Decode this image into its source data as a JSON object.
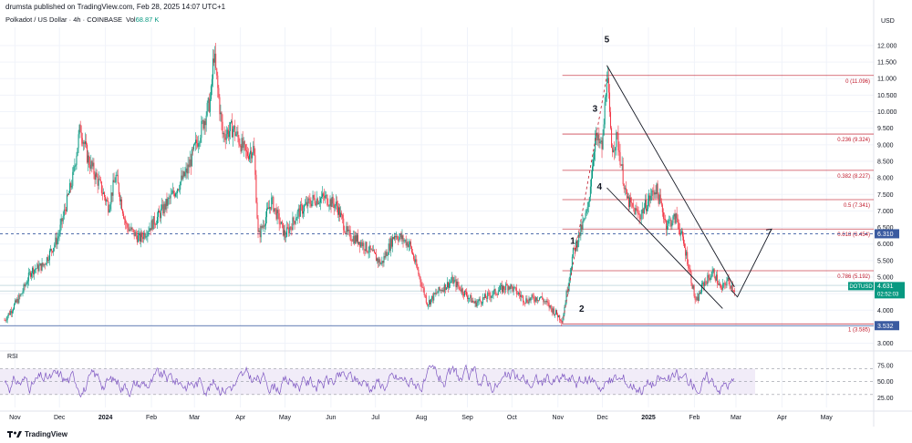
{
  "header": {
    "published": "drumsta published on TradingView.com, Feb 28, 2025 14:07 UTC+1"
  },
  "symbol": {
    "title": "Polkadot / US Dollar · 4h · COINBASE",
    "volume_label": "Vol",
    "volume_value": "68.87 K"
  },
  "footer": {
    "brand": "TradingView",
    "logo": "tradingview-logo-icon"
  },
  "colors": {
    "up": "#089981",
    "down": "#f23645",
    "fib": "#c0182a",
    "rsi": "#7e57c2",
    "rsi_band": "#ede7f6",
    "price_tag": "#089981",
    "level_tag": "#3a5ba0",
    "dashed": "#3a5ba0",
    "grid": "#f0f3fa"
  },
  "chart_data": [
    {
      "type": "candlestick",
      "title": "Polkadot / US Dollar · 4h · COINBASE",
      "currency_label": "USD",
      "y_ticks": [
        "12.000",
        "11.500",
        "11.000",
        "10.500",
        "10.000",
        "9.500",
        "9.000",
        "8.500",
        "8.000",
        "7.500",
        "7.000",
        "6.500",
        "6.000",
        "5.500",
        "5.000",
        "4.500",
        "4.000",
        "3.500",
        "3.000"
      ],
      "ylim": [
        2.85,
        12.55
      ],
      "x_months": [
        "Nov",
        "Dec",
        "2024",
        "Feb",
        "Mar",
        "Apr",
        "May",
        "Jun",
        "Jul",
        "Aug",
        "Sep",
        "Oct",
        "Nov",
        "Dec",
        "2025",
        "Feb",
        "Mar",
        "Apr",
        "May"
      ],
      "price_path": [
        [
          "2023-10-25",
          3.7
        ],
        [
          "2023-11-05",
          4.45
        ],
        [
          "2023-11-12",
          5.2
        ],
        [
          "2023-11-20",
          5.35
        ],
        [
          "2023-11-30",
          6.2
        ],
        [
          "2023-12-10",
          8.0
        ],
        [
          "2023-12-15",
          9.55
        ],
        [
          "2023-12-20",
          8.6
        ],
        [
          "2023-12-28",
          7.8
        ],
        [
          "2024-01-03",
          7.15
        ],
        [
          "2024-01-08",
          8.05
        ],
        [
          "2024-01-15",
          6.55
        ],
        [
          "2024-01-24",
          6.15
        ],
        [
          "2024-02-05",
          6.8
        ],
        [
          "2024-02-14",
          7.4
        ],
        [
          "2024-02-25",
          8.2
        ],
        [
          "2024-03-05",
          9.4
        ],
        [
          "2024-03-12",
          10.4
        ],
        [
          "2024-03-14",
          11.8
        ],
        [
          "2024-03-20",
          9.3
        ],
        [
          "2024-03-27",
          9.5
        ],
        [
          "2024-04-05",
          8.7
        ],
        [
          "2024-04-10",
          8.9
        ],
        [
          "2024-04-13",
          6.2
        ],
        [
          "2024-04-22",
          7.3
        ],
        [
          "2024-05-01",
          6.25
        ],
        [
          "2024-05-10",
          6.95
        ],
        [
          "2024-05-20",
          7.35
        ],
        [
          "2024-05-28",
          7.4
        ],
        [
          "2024-06-05",
          7.15
        ],
        [
          "2024-06-12",
          6.3
        ],
        [
          "2024-06-20",
          6.1
        ],
        [
          "2024-06-28",
          5.75
        ],
        [
          "2024-07-05",
          5.4
        ],
        [
          "2024-07-14",
          6.3
        ],
        [
          "2024-07-24",
          6.0
        ],
        [
          "2024-08-05",
          4.2
        ],
        [
          "2024-08-12",
          4.55
        ],
        [
          "2024-08-22",
          4.9
        ],
        [
          "2024-09-06",
          4.2
        ],
        [
          "2024-09-20",
          4.55
        ],
        [
          "2024-09-29",
          4.75
        ],
        [
          "2024-10-10",
          4.3
        ],
        [
          "2024-10-20",
          4.4
        ],
        [
          "2024-11-04",
          3.7
        ],
        [
          "2024-11-11",
          5.7
        ],
        [
          "2024-11-21",
          7.0
        ],
        [
          "2024-11-26",
          9.2
        ],
        [
          "2024-12-01",
          8.9
        ],
        [
          "2024-12-04",
          11.25
        ],
        [
          "2024-12-07",
          8.9
        ],
        [
          "2024-12-11",
          9.2
        ],
        [
          "2024-12-17",
          7.4
        ],
        [
          "2024-12-21",
          7.1
        ],
        [
          "2024-12-26",
          6.85
        ],
        [
          "2025-01-06",
          7.7
        ],
        [
          "2025-01-13",
          6.6
        ],
        [
          "2025-01-20",
          6.8
        ],
        [
          "2025-01-27",
          5.6
        ],
        [
          "2025-02-02",
          4.2
        ],
        [
          "2025-02-07",
          4.8
        ],
        [
          "2025-02-14",
          5.15
        ],
        [
          "2025-02-19",
          4.6
        ],
        [
          "2025-02-23",
          4.9
        ],
        [
          "2025-02-28",
          4.63
        ]
      ],
      "fib_levels": [
        {
          "label": "0 (11.096)",
          "value": 11.096
        },
        {
          "label": "0.236 (9.324)",
          "value": 9.324
        },
        {
          "label": "0.382 (8.227)",
          "value": 8.227
        },
        {
          "label": "0.5 (7.341)",
          "value": 7.341
        },
        {
          "label": "0.618 (6.454)",
          "value": 6.454
        },
        {
          "label": "0.786 (5.192)",
          "value": 5.192
        },
        {
          "label": "1 (3.585)",
          "value": 3.585
        }
      ],
      "wave_labels": [
        {
          "label": "1",
          "date": "2024-11-11",
          "value": 6.0
        },
        {
          "label": "2",
          "date": "2024-11-17",
          "value": 3.95
        },
        {
          "label": "3",
          "date": "2024-11-26",
          "value": 10.0
        },
        {
          "label": "4",
          "date": "2024-11-29",
          "value": 7.65
        },
        {
          "label": "5",
          "date": "2024-12-04",
          "value": 12.1
        }
      ],
      "price_tag": {
        "symbol": "DOTUSD",
        "price": "4.631",
        "countdown": "02:52:03",
        "value": 4.631
      },
      "level_tags": [
        {
          "label": "6.310",
          "value": 6.31
        },
        {
          "label": "3.532",
          "value": 3.532
        }
      ],
      "projection": [
        [
          "2025-03-02",
          4.4
        ],
        [
          "2025-03-25",
          6.45
        ]
      ],
      "channel_upper": [
        [
          "2024-12-04",
          11.4
        ],
        [
          "2025-02-28",
          4.7
        ]
      ],
      "channel_lower": [
        [
          "2024-12-04",
          7.7
        ],
        [
          "2025-02-20",
          4.05
        ]
      ]
    },
    {
      "type": "line",
      "title": "RSI",
      "y_ticks": [
        "75.00",
        "50.00",
        "25.00"
      ],
      "ylim": [
        10,
        92
      ],
      "band": [
        30,
        70
      ],
      "midline": 50
    }
  ]
}
